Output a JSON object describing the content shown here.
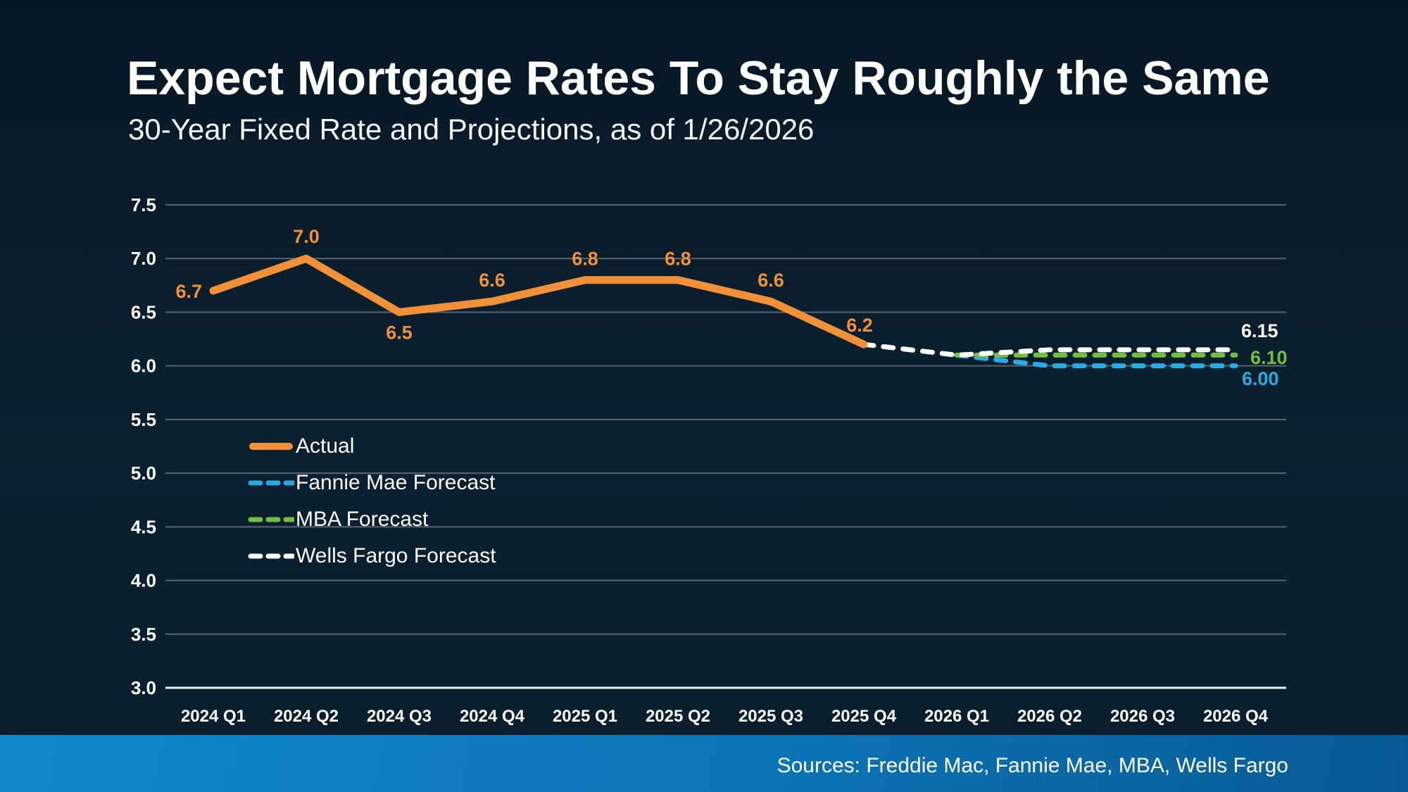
{
  "header": {
    "title": "Expect Mortgage Rates To Stay Roughly the Same",
    "subtitle": "30-Year Fixed Rate and Projections, as of 1/26/2026"
  },
  "footer": {
    "sources": "Sources: Freddie Mac, Fannie Mae, MBA, Wells Fargo"
  },
  "colors": {
    "background_top": "#081724",
    "background_bottom": "#0a1e2c",
    "gridline": "#5a646e",
    "axis_line": "#e9eef2",
    "text": "#ffffff",
    "actual": "#f0913a",
    "fannie_mae": "#29abe2",
    "mba": "#72bf44",
    "wells_fargo": "#ffffff",
    "footer_bar_left": "#1089cf",
    "footer_bar_right": "#085a92"
  },
  "chart_data": {
    "type": "line",
    "title": "Expect Mortgage Rates To Stay Roughly the Same",
    "subtitle": "30-Year Fixed Rate and Projections, as of 1/26/2026",
    "categories": [
      "2024 Q1",
      "2024 Q2",
      "2024 Q3",
      "2024 Q4",
      "2025 Q1",
      "2025 Q2",
      "2025 Q3",
      "2025 Q4",
      "2026 Q1",
      "2026 Q2",
      "2026 Q3",
      "2026 Q4"
    ],
    "ylim": [
      3.0,
      7.5
    ],
    "y_ticks": [
      7.5,
      7.0,
      6.5,
      6.0,
      5.5,
      5.0,
      4.5,
      4.0,
      3.5,
      3.0
    ],
    "y_tick_labels": [
      "7.5",
      "7.0",
      "6.5",
      "6.0",
      "5.5",
      "5.0",
      "4.5",
      "4.0",
      "3.5",
      "3.0"
    ],
    "grid": true,
    "legend_position": "inside-left-middle",
    "series": [
      {
        "name": "Actual",
        "color": "#f0913a",
        "style": "solid",
        "values": [
          6.7,
          7.0,
          6.5,
          6.6,
          6.8,
          6.8,
          6.6,
          6.2,
          null,
          null,
          null,
          null
        ],
        "point_labels": [
          "6.7",
          "7.0",
          "6.5",
          "6.6",
          "6.8",
          "6.8",
          "6.6",
          "6.2"
        ]
      },
      {
        "name": "Fannie Mae Forecast",
        "color": "#29abe2",
        "style": "dashed",
        "values": [
          null,
          null,
          null,
          null,
          null,
          null,
          null,
          null,
          6.1,
          6.0,
          6.0,
          6.0
        ],
        "end_label": "6.00"
      },
      {
        "name": "MBA Forecast",
        "color": "#72bf44",
        "style": "dashed",
        "values": [
          null,
          null,
          null,
          null,
          null,
          null,
          null,
          null,
          6.1,
          6.1,
          6.1,
          6.1
        ],
        "end_label": "6.10"
      },
      {
        "name": "Wells Fargo Forecast",
        "color": "#ffffff",
        "style": "dashed",
        "values": [
          null,
          null,
          null,
          null,
          null,
          null,
          null,
          6.2,
          6.1,
          6.15,
          6.15,
          6.15
        ],
        "end_label": "6.15"
      }
    ]
  }
}
